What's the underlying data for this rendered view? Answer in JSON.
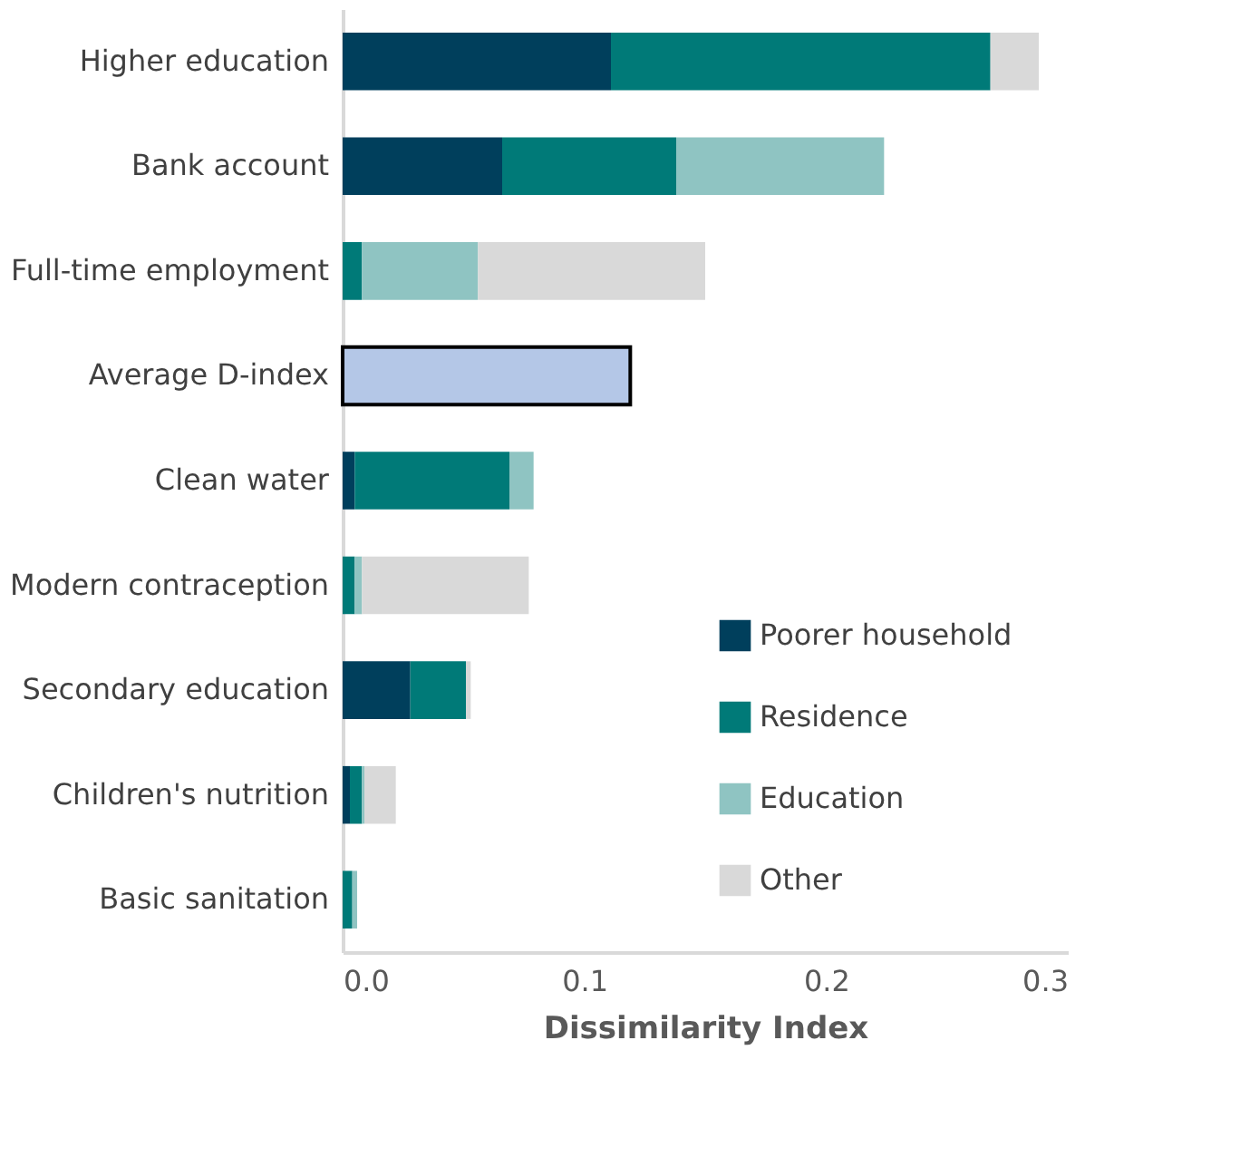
{
  "chart_data": {
    "type": "bar",
    "orientation": "horizontal",
    "stacked": true,
    "xlabel": "Dissimilarity Index",
    "categories": [
      "Higher education",
      "Bank account",
      "Full-time employment",
      "Average D-index",
      "Clean water",
      "Modern contraception",
      "Secondary education",
      "Children's nutrition",
      "Basic sanitation"
    ],
    "series": [
      {
        "name": "Poorer household",
        "color": "#003f5c",
        "values": [
          0.111,
          0.066,
          null,
          null,
          0.005,
          null,
          0.028,
          0.003,
          null
        ]
      },
      {
        "name": "Residence",
        "color": "#007a78",
        "values": [
          0.157,
          0.072,
          0.008,
          null,
          0.064,
          0.005,
          0.023,
          0.005,
          0.004
        ]
      },
      {
        "name": "Education",
        "color": "#8fc4c2",
        "values": [
          null,
          0.086,
          0.048,
          null,
          0.01,
          0.003,
          null,
          0.001,
          0.002
        ]
      },
      {
        "name": "Other",
        "color": "#d9d9d9",
        "values": [
          0.02,
          null,
          0.094,
          null,
          null,
          0.069,
          0.002,
          0.013,
          null
        ]
      },
      {
        "color": "#b4c7e7",
        "values": [
          null,
          null,
          null,
          0.119,
          null,
          null,
          null,
          null,
          null
        ]
      }
    ],
    "xlim": [
      0,
      0.3
    ],
    "xticks": [
      {
        "value": 0,
        "label": "0.0"
      },
      0.1,
      0.2,
      0.3
    ],
    "grid": false,
    "legend": "bottom right"
  }
}
